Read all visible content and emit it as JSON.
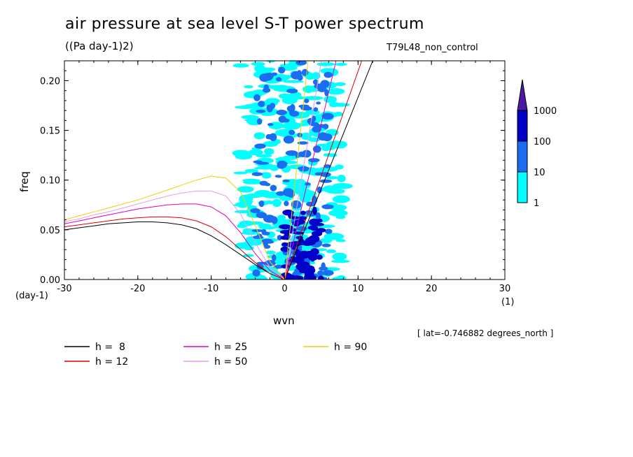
{
  "chart_data": {
    "type": "heatmap",
    "title": "air pressure at sea level S-T power spectrum",
    "units": "((Pa day-1)2)",
    "experiment": "T79L48_non_control",
    "xlabel": "wvn",
    "ylabel": "freq",
    "x_unit": "(1)",
    "y_unit": "(day-1)",
    "xlim": [
      -30,
      30
    ],
    "ylim": [
      0,
      0.22
    ],
    "x_ticks": [
      -30,
      -20,
      -10,
      0,
      10,
      20,
      30
    ],
    "x_tick_labels": [
      "-30",
      "-20",
      "-10",
      "0",
      "10",
      "20",
      "30"
    ],
    "y_ticks": [
      0.0,
      0.05,
      0.1,
      0.15,
      0.2
    ],
    "y_tick_labels": [
      "0.00",
      "0.05",
      "0.10",
      "0.15",
      "0.20"
    ],
    "annotation": "[ lat=-0.746882 degrees_north ]",
    "colorbar": {
      "levels": [
        "1",
        "10",
        "100",
        "1000"
      ],
      "colors": [
        "#00ffff",
        "#1a6cf0",
        "#0000c8",
        "#4b1aa0"
      ]
    },
    "contour_regions": [
      {
        "level": "1",
        "x_range": [
          -6,
          8
        ],
        "y_range": [
          0.0,
          0.22
        ]
      },
      {
        "level": "10",
        "x_range": [
          -4,
          6
        ],
        "y_range": [
          0.0,
          0.22
        ]
      },
      {
        "level": "100",
        "x_range": [
          0,
          5
        ],
        "y_range": [
          0.0,
          0.07
        ]
      }
    ],
    "series": [
      {
        "name": "h =  8",
        "color": "#000000",
        "kelvin": {
          "x": [
            0,
            12
          ],
          "y": [
            0,
            0.22
          ]
        },
        "rossby": {
          "x": [
            -30,
            -28,
            -26,
            -24,
            -22,
            -20,
            -18,
            -16,
            -14,
            -12,
            -10,
            -8,
            -6,
            -4,
            -2,
            0
          ],
          "y": [
            0.05,
            0.052,
            0.054,
            0.056,
            0.057,
            0.058,
            0.058,
            0.057,
            0.055,
            0.051,
            0.044,
            0.035,
            0.025,
            0.015,
            0.006,
            0.0
          ]
        }
      },
      {
        "name": "h = 12",
        "color": "#e00000",
        "kelvin": {
          "x": [
            0,
            10.5
          ],
          "y": [
            0,
            0.22
          ]
        },
        "rossby": {
          "x": [
            -30,
            -28,
            -26,
            -24,
            -22,
            -20,
            -18,
            -16,
            -14,
            -12,
            -10,
            -8,
            -6,
            -4,
            -2,
            0
          ],
          "y": [
            0.053,
            0.055,
            0.057,
            0.059,
            0.061,
            0.062,
            0.063,
            0.063,
            0.062,
            0.059,
            0.053,
            0.043,
            0.03,
            0.017,
            0.006,
            0.0
          ]
        }
      },
      {
        "name": "h = 25",
        "color": "#e000c0",
        "kelvin": {
          "x": [
            0,
            7
          ],
          "y": [
            0,
            0.22
          ]
        },
        "rossby": {
          "x": [
            -30,
            -28,
            -26,
            -24,
            -22,
            -20,
            -18,
            -16,
            -14,
            -12,
            -10,
            -8,
            -6,
            -4,
            -2,
            0
          ],
          "y": [
            0.056,
            0.059,
            0.062,
            0.065,
            0.068,
            0.071,
            0.073,
            0.075,
            0.076,
            0.076,
            0.073,
            0.064,
            0.047,
            0.026,
            0.009,
            0.0
          ]
        }
      },
      {
        "name": "h = 50",
        "color": "#e89be8",
        "kelvin": {
          "x": [
            0,
            5
          ],
          "y": [
            0,
            0.22
          ]
        },
        "rossby": {
          "x": [
            -30,
            -28,
            -26,
            -24,
            -22,
            -20,
            -18,
            -16,
            -14,
            -12,
            -10,
            -8,
            -6,
            -4,
            -2,
            0
          ],
          "y": [
            0.058,
            0.061,
            0.065,
            0.068,
            0.072,
            0.076,
            0.08,
            0.084,
            0.087,
            0.089,
            0.089,
            0.084,
            0.066,
            0.037,
            0.012,
            0.0
          ]
        }
      },
      {
        "name": "h = 90",
        "color": "#f0d000",
        "kelvin": {
          "x": [
            0,
            3.2
          ],
          "y": [
            0,
            0.22
          ]
        },
        "rossby": {
          "x": [
            -30,
            -28,
            -26,
            -24,
            -22,
            -20,
            -18,
            -16,
            -14,
            -12,
            -10,
            -8,
            -6,
            -4,
            -2,
            0
          ],
          "y": [
            0.06,
            0.064,
            0.068,
            0.072,
            0.076,
            0.08,
            0.085,
            0.09,
            0.095,
            0.1,
            0.104,
            0.102,
            0.088,
            0.054,
            0.018,
            0.0
          ]
        }
      }
    ]
  }
}
